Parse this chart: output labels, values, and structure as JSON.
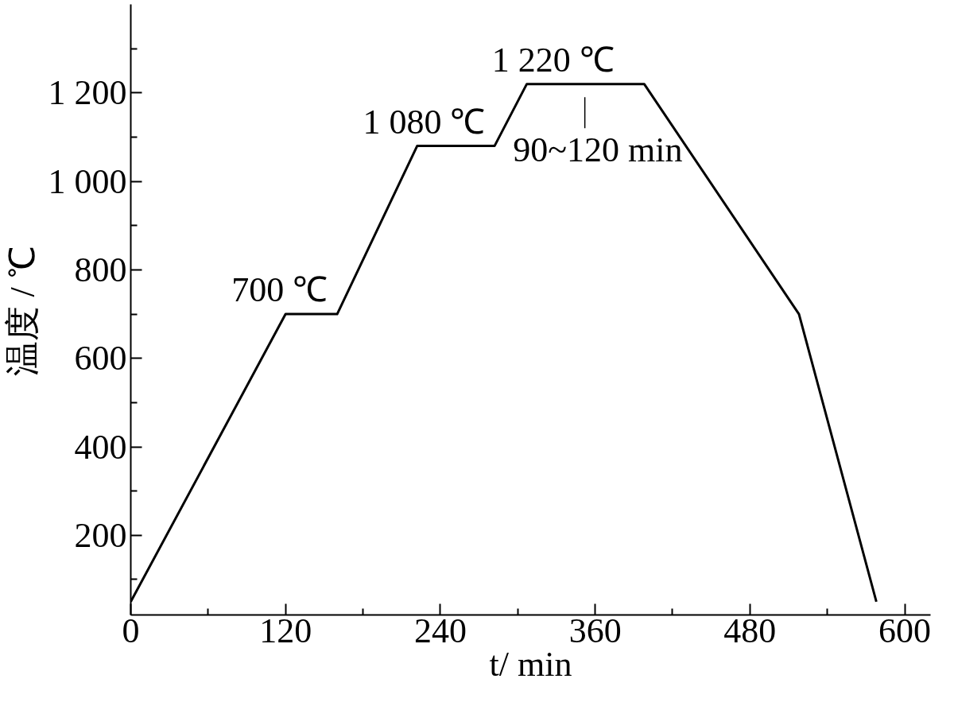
{
  "chart_data": {
    "type": "line",
    "xlabel": "t/ min",
    "ylabel": "温度 / ℃",
    "x": [
      0,
      120,
      160,
      222,
      282,
      307,
      398,
      518,
      578
    ],
    "series": [
      {
        "color": "#000000",
        "values": [
          50,
          700,
          700,
          1080,
          1080,
          1220,
          1220,
          700,
          50
        ]
      }
    ],
    "xlim": [
      0,
      620
    ],
    "ylim": [
      20,
      1400
    ],
    "xticks": [
      0,
      {
        "value": 60,
        "label": null
      },
      120,
      {
        "value": 180,
        "label": null
      },
      240,
      {
        "value": 300,
        "label": null
      },
      360,
      {
        "value": 420,
        "label": null
      },
      480,
      {
        "value": 540,
        "label": null
      },
      600
    ],
    "yticks": [
      {
        "value": 100,
        "label": null
      },
      200,
      {
        "value": 300,
        "label": null
      },
      400,
      {
        "value": 500,
        "label": null
      },
      600,
      {
        "value": 700,
        "label": null
      },
      800,
      {
        "value": 900,
        "label": null
      },
      {
        "value": 1000,
        "label": "1 000"
      },
      {
        "value": 1100,
        "label": null
      },
      {
        "value": 1200,
        "label": "1 200"
      },
      {
        "value": 1300,
        "label": null
      }
    ],
    "annotations": [
      {
        "text": "700 ℃",
        "x": 140,
        "y": 700
      },
      {
        "text": "1 080 ℃",
        "x": 252,
        "y": 1080
      },
      {
        "text": "1 220 ℃",
        "x": 352,
        "y": 1220
      },
      {
        "text": "90~120 min",
        "x": 352,
        "y": 1220
      }
    ],
    "grid": false,
    "marker": "none",
    "line_style": "solid"
  }
}
